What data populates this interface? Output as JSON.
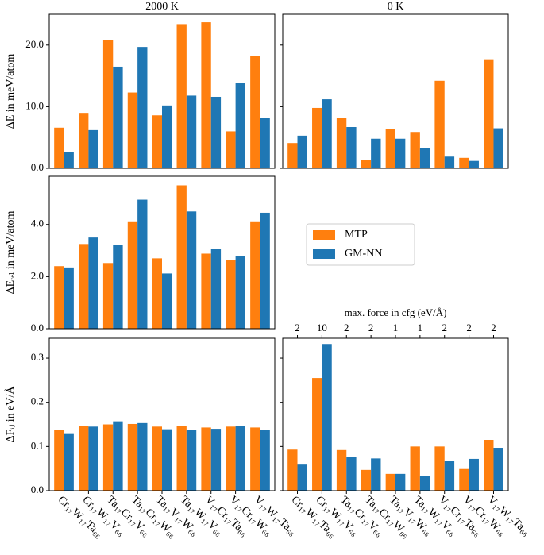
{
  "chart_data": [
    {
      "type": "bar",
      "title": "2000 K",
      "ylabel": "ΔE in meV/atom",
      "series": [
        {
          "name": "MTP",
          "color": "#ff7f0e",
          "values": [
            6.6,
            9.0,
            20.8,
            12.3,
            8.6,
            23.4,
            23.7,
            6.0,
            18.2
          ]
        },
        {
          "name": "GM-NN",
          "color": "#1f77b4",
          "values": [
            2.7,
            6.2,
            16.5,
            19.7,
            10.2,
            11.8,
            11.6,
            13.9,
            8.2
          ]
        }
      ],
      "ylim": [
        0,
        25
      ],
      "yticks": [
        {
          "value": 0,
          "label": "0.0"
        },
        {
          "value": 10,
          "label": "10.0"
        },
        {
          "value": 20,
          "label": "20.0"
        }
      ],
      "show_ytick_labels": true
    },
    {
      "type": "bar",
      "title": "0 K",
      "series": [
        {
          "name": "MTP",
          "color": "#ff7f0e",
          "values": [
            4.1,
            9.8,
            8.2,
            1.4,
            6.4,
            5.9,
            14.2,
            1.7,
            17.7
          ]
        },
        {
          "name": "GM-NN",
          "color": "#1f77b4",
          "values": [
            5.3,
            11.2,
            6.7,
            4.8,
            4.8,
            3.3,
            1.9,
            1.2,
            6.5
          ]
        }
      ],
      "ylim": [
        0,
        25
      ],
      "yticks": [
        0,
        10,
        20
      ],
      "show_ytick_labels": false
    },
    {
      "type": "bar",
      "ylabel": "ΔEᵣₑₗ in meV/atom",
      "legend": "right",
      "series": [
        {
          "name": "MTP",
          "color": "#ff7f0e",
          "values": [
            2.4,
            3.25,
            2.52,
            4.12,
            2.7,
            5.5,
            2.88,
            2.62,
            4.12
          ]
        },
        {
          "name": "GM-NN",
          "color": "#1f77b4",
          "values": [
            2.35,
            3.5,
            3.2,
            4.95,
            2.12,
            4.5,
            3.05,
            2.78,
            4.45
          ]
        }
      ],
      "ylim": [
        0,
        5.85
      ],
      "yticks": [
        {
          "value": 0,
          "label": "0.0"
        },
        {
          "value": 2,
          "label": "2.0"
        },
        {
          "value": 4,
          "label": "4.0"
        }
      ],
      "show_ytick_labels": true
    },
    {
      "type": "bar",
      "ylabel": "ΔFᵢⱼ in eV/Å",
      "categories": [
        "Cr₁₇W₁₇Ta₆₆",
        "Cr₁₇W₁₇V₆₆",
        "Ta₁₇Cr₁₇V₆₆",
        "Ta₁₇Cr₁₇W₆₆",
        "Ta₁₇V₁₇W₆₆",
        "Ta₁₇W₁₇V₆₆",
        "V₁₇Cr₁₇Ta₆₆",
        "V₁₇Cr₁₇W₆₆",
        "V₁₇W₁₇Ta₆₆"
      ],
      "series": [
        {
          "name": "MTP",
          "color": "#ff7f0e",
          "values": [
            0.137,
            0.146,
            0.15,
            0.151,
            0.145,
            0.146,
            0.143,
            0.145,
            0.143
          ]
        },
        {
          "name": "GM-NN",
          "color": "#1f77b4",
          "values": [
            0.13,
            0.145,
            0.157,
            0.153,
            0.139,
            0.137,
            0.14,
            0.146,
            0.137
          ]
        }
      ],
      "ylim": [
        0,
        0.345
      ],
      "yticks": [
        {
          "value": 0,
          "label": "0.0"
        },
        {
          "value": 0.1,
          "label": "0.1"
        },
        {
          "value": 0.2,
          "label": "0.2"
        },
        {
          "value": 0.3,
          "label": "0.3"
        }
      ],
      "show_ytick_labels": true
    },
    {
      "type": "bar",
      "top_axis_label": "max. force in cfg (eV/Å)",
      "top_axis_values": [
        2,
        10,
        2,
        2,
        1,
        1,
        2,
        2,
        2
      ],
      "categories": [
        "Cr₁₇W₁₇Ta₆₆",
        "Cr₁₇W₁₇V₆₆",
        "Ta₁₇Cr₁₇V₆₆",
        "Ta₁₇Cr₁₇W₆₆",
        "Ta₁₇V₁₇W₆₆",
        "Ta₁₇W₁₇V₆₆",
        "V₁₇Cr₁₇Ta₆₆",
        "V₁₇Cr₁₇W₆₆",
        "V₁₇W₁₇Ta₆₆"
      ],
      "series": [
        {
          "name": "MTP",
          "color": "#ff7f0e",
          "values": [
            0.093,
            0.255,
            0.092,
            0.047,
            0.038,
            0.1,
            0.1,
            0.049,
            0.115
          ]
        },
        {
          "name": "GM-NN",
          "color": "#1f77b4",
          "values": [
            0.059,
            0.332,
            0.076,
            0.073,
            0.038,
            0.034,
            0.067,
            0.072,
            0.097
          ]
        }
      ],
      "ylim": [
        0,
        0.345
      ],
      "yticks": [
        0,
        0.1,
        0.2,
        0.3
      ],
      "show_ytick_labels": false
    }
  ]
}
